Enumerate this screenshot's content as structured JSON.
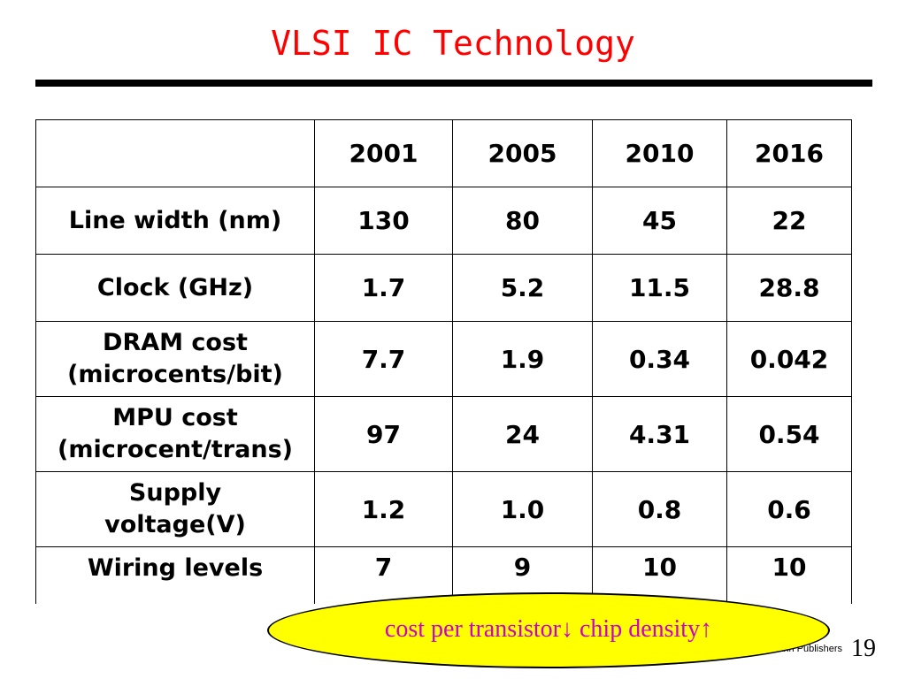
{
  "slide": {
    "title": "VLSI IC Technology",
    "page_number": "19",
    "publisher": "gan Kaufmann Publishers"
  },
  "table": {
    "header": [
      "",
      "2001",
      "2005",
      "2010",
      "2016"
    ],
    "rows": [
      {
        "label": "Line width (nm)",
        "values": [
          "130",
          "80",
          "45",
          "22"
        ]
      },
      {
        "label": "Clock (GHz)",
        "values": [
          "1.7",
          "5.2",
          "11.5",
          "28.8"
        ]
      },
      {
        "label_lines": [
          "DRAM cost",
          "(microcents/bit)"
        ],
        "values": [
          "7.7",
          "1.9",
          "0.34",
          "0.042"
        ]
      },
      {
        "label_lines": [
          "MPU cost",
          "(microcent/trans)"
        ],
        "values": [
          "97",
          "24",
          "4.31",
          "0.54"
        ]
      },
      {
        "label_lines": [
          "Supply",
          "voltage(V)"
        ],
        "values": [
          "1.2",
          "1.0",
          "0.8",
          "0.6"
        ]
      },
      {
        "label": "Wiring levels",
        "values": [
          "7",
          "9",
          "10",
          "10"
        ]
      }
    ]
  },
  "callout": {
    "text": "cost per transistor↓ chip density↑"
  },
  "colors": {
    "title": "#ff0000",
    "callout_fill": "#ffff00",
    "callout_text": "#cc00cc"
  }
}
